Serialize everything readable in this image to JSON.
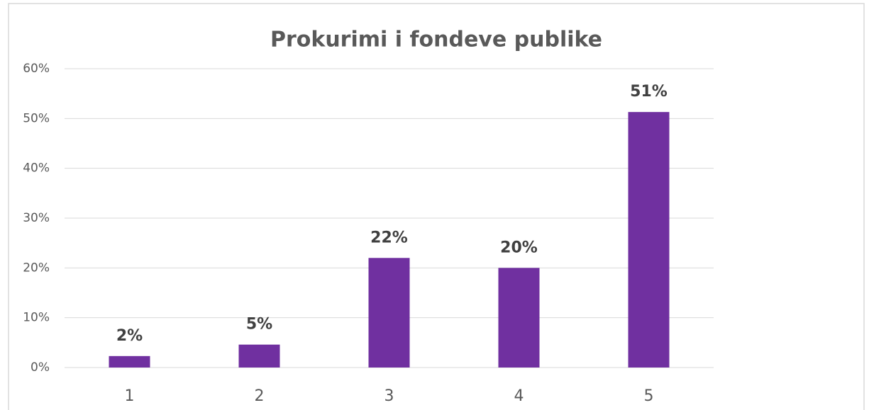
{
  "chart_data": {
    "type": "bar",
    "title": "Prokurimi i fondeve publike",
    "categories": [
      "1",
      "2",
      "3",
      "4",
      "5"
    ],
    "values": [
      2.3,
      4.6,
      22,
      20,
      51.3
    ],
    "value_labels": [
      "2%",
      "5%",
      "22%",
      "20%",
      "51%"
    ],
    "color": "#7030a0",
    "ylim": [
      0,
      60
    ],
    "yticks": [
      {
        "value": 0,
        "label": "0%"
      },
      {
        "value": 10,
        "label": "10%"
      },
      {
        "value": 20,
        "label": "20%"
      },
      {
        "value": 30,
        "label": "30%"
      },
      {
        "value": 40,
        "label": "40%"
      },
      {
        "value": 50,
        "label": "50%"
      },
      {
        "value": 60,
        "label": "60%"
      }
    ],
    "grid": true
  }
}
